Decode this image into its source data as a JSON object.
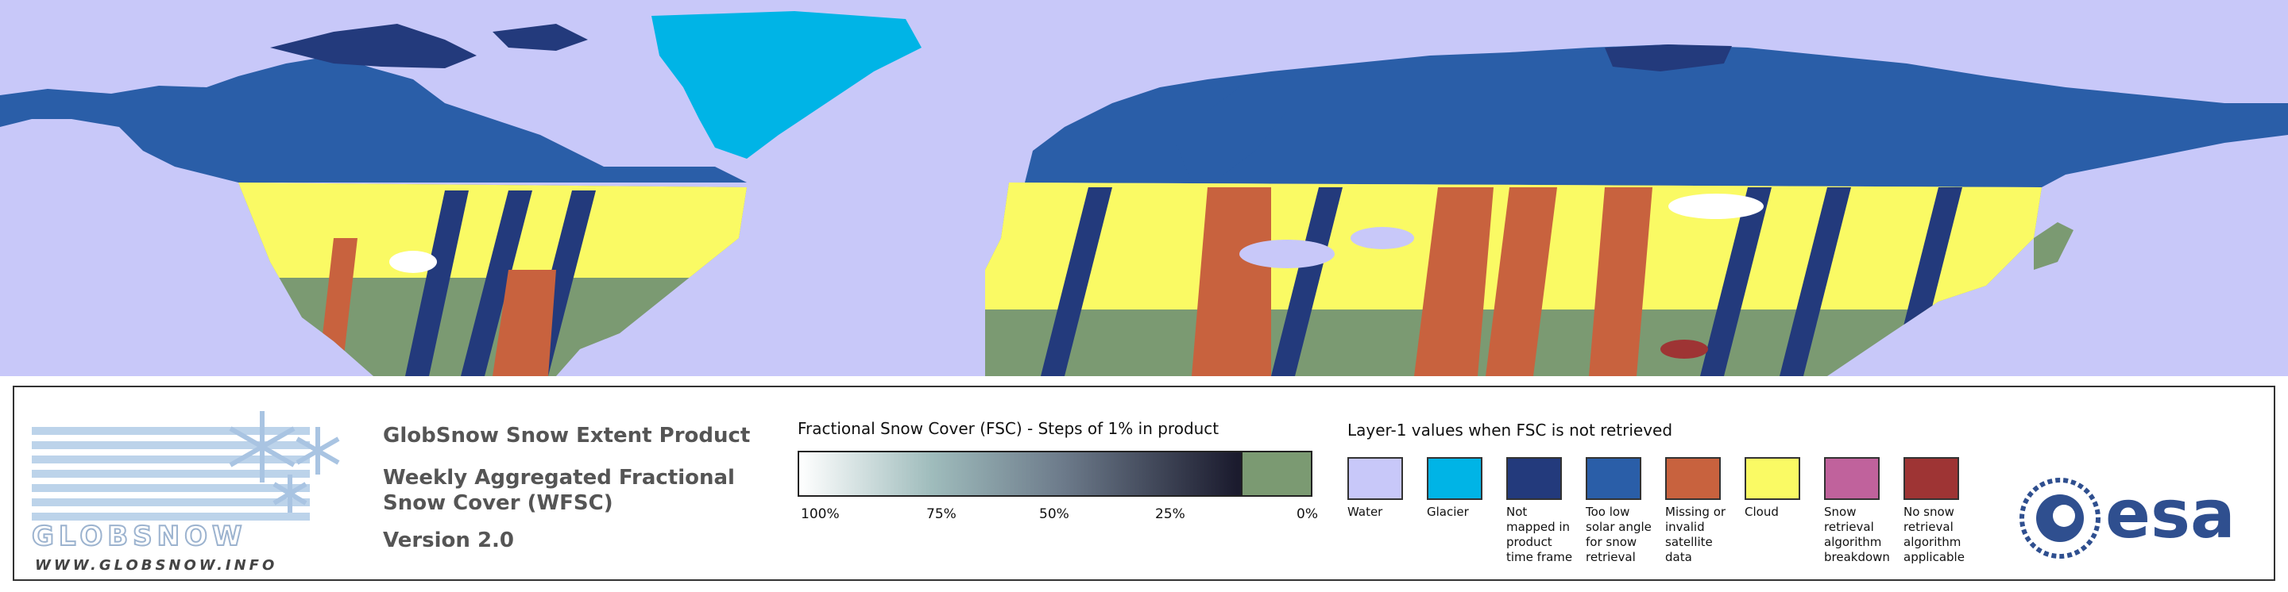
{
  "product": {
    "title": "GlobSnow Snow Extent Product",
    "subtitle": "Weekly Aggregated Fractional Snow Cover (WFSC)",
    "version": "Version 2.0"
  },
  "logo": {
    "wordmark": "GLOBSNOW",
    "url": "WWW.GLOBSNOW.INFO"
  },
  "esa": {
    "wordmark": "esa"
  },
  "fsc_scale": {
    "title": "Fractional Snow Cover (FSC) - Steps of 1% in product",
    "ticks": [
      "100%",
      "75%",
      "50%",
      "25%",
      "0%"
    ],
    "gradient_from": "#ffffff",
    "gradient_to": "#1b1b2e",
    "zero_color": "#7b9a72"
  },
  "layer1": {
    "title": "Layer-1 values when FSC is not retrieved",
    "classes": [
      {
        "label": "Water",
        "color": "#c8c8f9"
      },
      {
        "label": "Glacier",
        "color": "#00b4e6"
      },
      {
        "label": "Not mapped in product time frame",
        "color": "#233a7c"
      },
      {
        "label": "Too low solar angle for snow retrieval",
        "color": "#2a5ea8"
      },
      {
        "label": "Missing or invalid satellite data",
        "color": "#c8623e"
      },
      {
        "label": "Cloud",
        "color": "#fafa64"
      },
      {
        "label": "Snow retrieval algorithm breakdown",
        "color": "#c0629c"
      },
      {
        "label": "No snow retrieval algorithm applicable",
        "color": "#9e3434"
      }
    ]
  },
  "map_colors": {
    "ocean": "#c8c8f9",
    "glacier": "#00b4e6",
    "not_mapped": "#233a7c",
    "low_solar": "#2a5ea8",
    "missing": "#c8623e",
    "cloud": "#fafa64",
    "snow_free": "#7b9a72",
    "snow": "#ffffff"
  }
}
